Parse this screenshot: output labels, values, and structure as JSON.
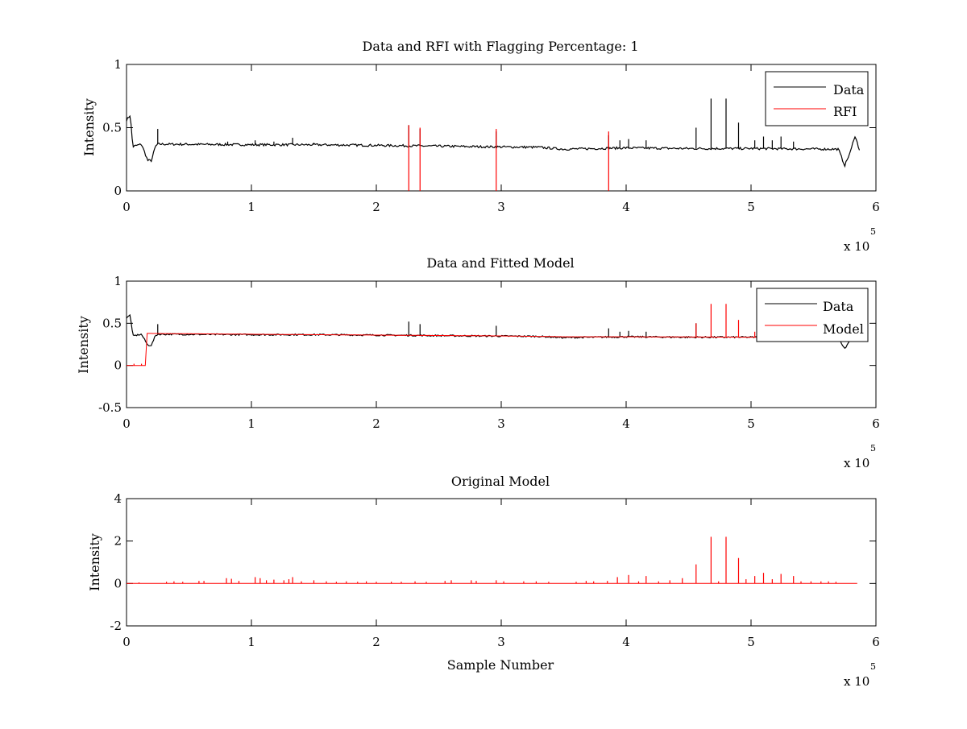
{
  "chart_data": [
    {
      "type": "line",
      "title": "Data and RFI with Flagging Percentage: 1",
      "xlabel": "",
      "ylabel": "Intensity",
      "xlim": [
        0,
        600000
      ],
      "ylim": [
        0,
        1
      ],
      "xticks": [
        0,
        1,
        2,
        3,
        4,
        5,
        6
      ],
      "yticks": [
        "0",
        "0.5",
        "1"
      ],
      "yticks_values": [
        0,
        0.5,
        1
      ],
      "x_multiplier": "x 10",
      "x_multiplier_exp": "5",
      "grid": false,
      "legend_position": "top-right",
      "series": [
        {
          "name": "Data",
          "color": "#000000",
          "baseline": [
            [
              0,
              0.56
            ],
            [
              3000,
              0.6
            ],
            [
              5000,
              0.35
            ],
            [
              12000,
              0.37
            ],
            [
              17000,
              0.24
            ],
            [
              20000,
              0.24
            ],
            [
              23000,
              0.35
            ],
            [
              25000,
              0.37
            ],
            [
              100000,
              0.365
            ],
            [
              150000,
              0.365
            ],
            [
              200000,
              0.36
            ],
            [
              280000,
              0.35
            ],
            [
              330000,
              0.345
            ],
            [
              350000,
              0.33
            ],
            [
              400000,
              0.34
            ],
            [
              450000,
              0.335
            ],
            [
              500000,
              0.335
            ],
            [
              570000,
              0.33
            ],
            [
              575000,
              0.2
            ],
            [
              580000,
              0.32
            ],
            [
              583000,
              0.44
            ],
            [
              587000,
              0.32
            ]
          ],
          "spikes": [
            [
              25000,
              0.49
            ],
            [
              81000,
              0.39
            ],
            [
              103000,
              0.4
            ],
            [
              118000,
              0.39
            ],
            [
              133000,
              0.42
            ],
            [
              150000,
              0.38
            ],
            [
              226000,
              0.52
            ],
            [
              235000,
              0.49
            ],
            [
              296000,
              0.47
            ],
            [
              386000,
              0.44
            ],
            [
              395000,
              0.4
            ],
            [
              402000,
              0.41
            ],
            [
              416000,
              0.4
            ],
            [
              456000,
              0.5
            ],
            [
              468000,
              0.73
            ],
            [
              480000,
              0.73
            ],
            [
              490000,
              0.54
            ],
            [
              503000,
              0.4
            ],
            [
              510000,
              0.43
            ],
            [
              517000,
              0.4
            ],
            [
              524000,
              0.43
            ],
            [
              534000,
              0.39
            ]
          ]
        },
        {
          "name": "RFI",
          "color": "#ff0000",
          "spikes": [
            [
              226000,
              0.52
            ],
            [
              235000,
              0.5
            ],
            [
              296000,
              0.49
            ],
            [
              386000,
              0.47
            ]
          ]
        }
      ]
    },
    {
      "type": "line",
      "title": "Data and Fitted Model",
      "xlabel": "",
      "ylabel": "Intensity",
      "xlim": [
        0,
        600000
      ],
      "ylim": [
        -0.5,
        1
      ],
      "xticks": [
        0,
        1,
        2,
        3,
        4,
        5,
        6
      ],
      "yticks": [
        "-0.5",
        "0",
        "0.5",
        "1"
      ],
      "yticks_values": [
        -0.5,
        0,
        0.5,
        1
      ],
      "x_multiplier": "x 10",
      "x_multiplier_exp": "5",
      "grid": false,
      "legend_position": "top-right",
      "series": [
        {
          "name": "Data",
          "color": "#000000",
          "baseline": [
            [
              0,
              0.56
            ],
            [
              3000,
              0.6
            ],
            [
              5000,
              0.35
            ],
            [
              12000,
              0.37
            ],
            [
              17000,
              0.24
            ],
            [
              20000,
              0.24
            ],
            [
              23000,
              0.35
            ],
            [
              25000,
              0.37
            ],
            [
              100000,
              0.365
            ],
            [
              150000,
              0.365
            ],
            [
              200000,
              0.36
            ],
            [
              280000,
              0.35
            ],
            [
              330000,
              0.345
            ],
            [
              350000,
              0.33
            ],
            [
              400000,
              0.34
            ],
            [
              450000,
              0.335
            ],
            [
              500000,
              0.335
            ],
            [
              570000,
              0.33
            ],
            [
              575000,
              0.2
            ],
            [
              580000,
              0.32
            ],
            [
              583000,
              0.44
            ],
            [
              587000,
              0.32
            ]
          ],
          "spikes": [
            [
              25000,
              0.49
            ],
            [
              226000,
              0.52
            ],
            [
              235000,
              0.49
            ],
            [
              296000,
              0.47
            ],
            [
              386000,
              0.44
            ],
            [
              395000,
              0.4
            ],
            [
              402000,
              0.41
            ],
            [
              416000,
              0.4
            ],
            [
              456000,
              0.5
            ]
          ]
        },
        {
          "name": "Model",
          "color": "#ff0000",
          "baseline": [
            [
              0,
              0.0
            ],
            [
              15000,
              0.0
            ],
            [
              15000,
              0.38
            ],
            [
              100000,
              0.37
            ],
            [
              200000,
              0.36
            ],
            [
              300000,
              0.35
            ],
            [
              350000,
              0.34
            ],
            [
              400000,
              0.34
            ],
            [
              500000,
              0.335
            ],
            [
              540000,
              0.33
            ]
          ],
          "spikes": [
            [
              6000,
              0.02
            ],
            [
              12000,
              0.02
            ],
            [
              456000,
              0.5
            ],
            [
              468000,
              0.73
            ],
            [
              480000,
              0.73
            ],
            [
              490000,
              0.54
            ],
            [
              503000,
              0.4
            ]
          ]
        }
      ]
    },
    {
      "type": "line",
      "title": "Original Model",
      "xlabel": "Sample Number",
      "ylabel": "Intensity",
      "xlim": [
        0,
        600000
      ],
      "ylim": [
        -2,
        4
      ],
      "xticks": [
        0,
        1,
        2,
        3,
        4,
        5,
        6
      ],
      "yticks": [
        "-2",
        "0",
        "2",
        "4"
      ],
      "yticks_values": [
        -2,
        0,
        2,
        4
      ],
      "x_multiplier": "x 10",
      "x_multiplier_exp": "5",
      "grid": false,
      "legend_position": "none",
      "series": [
        {
          "color": "#ff0000",
          "baseline": [
            [
              0,
              0.0
            ],
            [
              585000,
              0.0
            ]
          ],
          "spikes": [
            [
              10000,
              0.05
            ],
            [
              32000,
              0.08
            ],
            [
              38000,
              0.1
            ],
            [
              45000,
              0.08
            ],
            [
              58000,
              0.12
            ],
            [
              62000,
              0.12
            ],
            [
              80000,
              0.25
            ],
            [
              84000,
              0.22
            ],
            [
              90000,
              0.12
            ],
            [
              103000,
              0.3
            ],
            [
              107000,
              0.25
            ],
            [
              112000,
              0.15
            ],
            [
              118000,
              0.18
            ],
            [
              126000,
              0.15
            ],
            [
              130000,
              0.2
            ],
            [
              133000,
              0.3
            ],
            [
              140000,
              0.1
            ],
            [
              150000,
              0.15
            ],
            [
              160000,
              0.1
            ],
            [
              168000,
              0.08
            ],
            [
              176000,
              0.1
            ],
            [
              185000,
              0.08
            ],
            [
              192000,
              0.1
            ],
            [
              200000,
              0.08
            ],
            [
              212000,
              0.08
            ],
            [
              220000,
              0.08
            ],
            [
              231000,
              0.1
            ],
            [
              240000,
              0.08
            ],
            [
              255000,
              0.12
            ],
            [
              260000,
              0.15
            ],
            [
              276000,
              0.15
            ],
            [
              280000,
              0.12
            ],
            [
              296000,
              0.15
            ],
            [
              302000,
              0.1
            ],
            [
              318000,
              0.1
            ],
            [
              328000,
              0.1
            ],
            [
              338000,
              0.08
            ],
            [
              360000,
              0.08
            ],
            [
              368000,
              0.12
            ],
            [
              374000,
              0.1
            ],
            [
              385000,
              0.12
            ],
            [
              393000,
              0.3
            ],
            [
              402000,
              0.4
            ],
            [
              410000,
              0.1
            ],
            [
              416000,
              0.35
            ],
            [
              426000,
              0.1
            ],
            [
              435000,
              0.15
            ],
            [
              445000,
              0.25
            ],
            [
              456000,
              0.9
            ],
            [
              468000,
              2.2
            ],
            [
              474000,
              0.1
            ],
            [
              480000,
              2.2
            ],
            [
              490000,
              1.2
            ],
            [
              496000,
              0.2
            ],
            [
              503000,
              0.35
            ],
            [
              510000,
              0.5
            ],
            [
              517000,
              0.2
            ],
            [
              524000,
              0.45
            ],
            [
              534000,
              0.35
            ],
            [
              540000,
              0.1
            ],
            [
              548000,
              0.1
            ],
            [
              556000,
              0.1
            ],
            [
              562000,
              0.1
            ],
            [
              568000,
              0.08
            ]
          ]
        }
      ]
    }
  ]
}
